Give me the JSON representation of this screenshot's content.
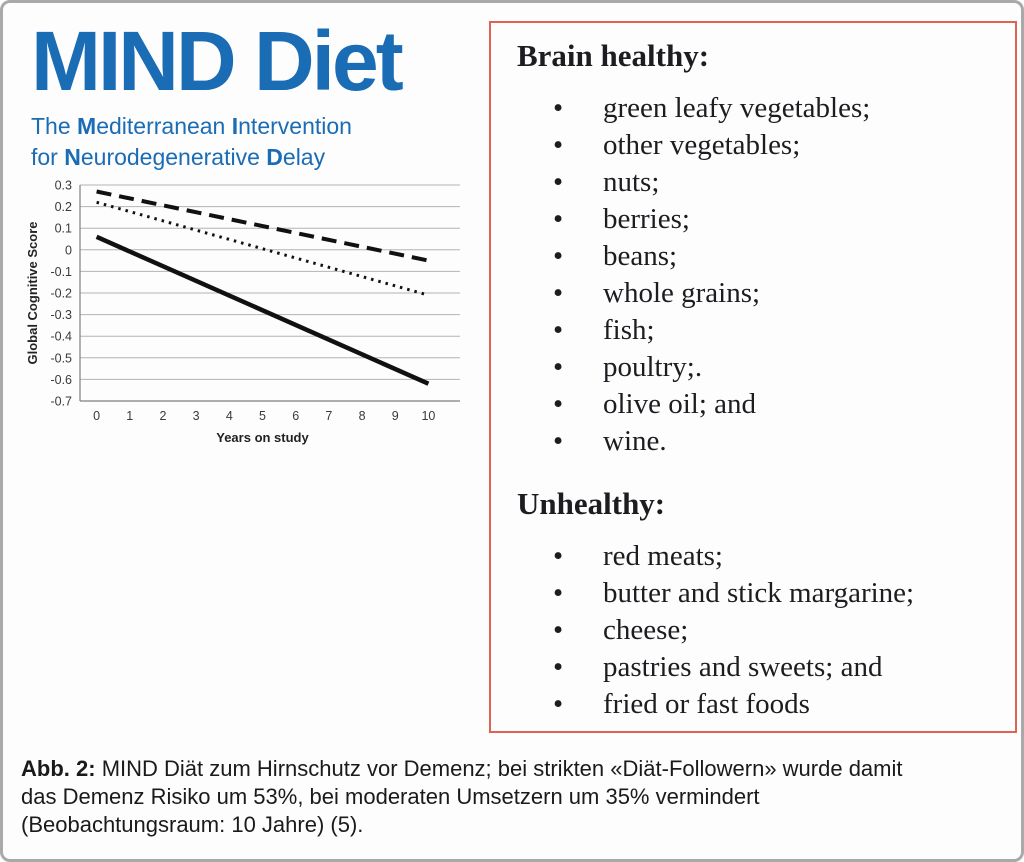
{
  "title": {
    "main": "MIND Diet"
  },
  "subtitle": {
    "lines": [
      [
        {
          "text": "The ",
          "bold": false
        },
        {
          "text": "M",
          "bold": true
        },
        {
          "text": "editerranean ",
          "bold": false
        },
        {
          "text": "I",
          "bold": true
        },
        {
          "text": "ntervention",
          "bold": false
        }
      ],
      [
        {
          "text": "for ",
          "bold": false
        },
        {
          "text": "N",
          "bold": true
        },
        {
          "text": "eurodegenerative ",
          "bold": false
        },
        {
          "text": "D",
          "bold": true
        },
        {
          "text": "elay",
          "bold": false
        }
      ]
    ]
  },
  "colors": {
    "accent_blue": "#1a6cb5",
    "box_border_red": "#de6353",
    "outer_border_gray": "#a9a9a9",
    "grid_gray": "#b3b3b3",
    "axis_gray": "#808080",
    "line_black": "#111111"
  },
  "chart_data": {
    "type": "line",
    "title": "",
    "xlabel": "Years on study",
    "ylabel": "Global Cognitive Score",
    "xticks": [
      0,
      1,
      2,
      3,
      4,
      5,
      6,
      7,
      8,
      9,
      10
    ],
    "yticks": [
      0.3,
      0.2,
      0.1,
      0,
      -0.1,
      -0.2,
      -0.3,
      -0.4,
      -0.5,
      -0.6,
      -0.7
    ],
    "xlim": [
      0,
      10
    ],
    "ylim": [
      -0.7,
      0.3
    ],
    "grid": "horizontal",
    "legend": "none",
    "series": [
      {
        "name": "dashed-line",
        "style": "dashed",
        "x": [
          0,
          10
        ],
        "y": [
          0.27,
          -0.05
        ]
      },
      {
        "name": "dotted-line",
        "style": "dotted",
        "x": [
          0,
          10
        ],
        "y": [
          0.22,
          -0.21
        ]
      },
      {
        "name": "solid-line",
        "style": "solid",
        "x": [
          0,
          10
        ],
        "y": [
          0.06,
          -0.62
        ]
      }
    ]
  },
  "right_box": {
    "brain_healthy": {
      "heading": "Brain healthy:",
      "items": [
        "green leafy vegetables;",
        "other vegetables;",
        "nuts;",
        "berries;",
        "beans;",
        "whole grains;",
        "fish;",
        "poultry;.",
        "olive oil; and",
        "wine."
      ]
    },
    "unhealthy": {
      "heading": "Unhealthy:",
      "items": [
        "red meats;",
        "butter and stick margarine;",
        "cheese;",
        "pastries and sweets; and",
        "fried or fast foods"
      ]
    }
  },
  "caption": {
    "label": "Abb. 2:",
    "line1": "MIND Diät zum Hirnschutz vor Demenz; bei strikten «Diät-Followern» wurde damit",
    "line2": "das Demenz Risiko um 53%, bei moderaten Umsetzern um 35% vermindert",
    "line3": "(Beobachtungsraum: 10 Jahre) (5)."
  }
}
